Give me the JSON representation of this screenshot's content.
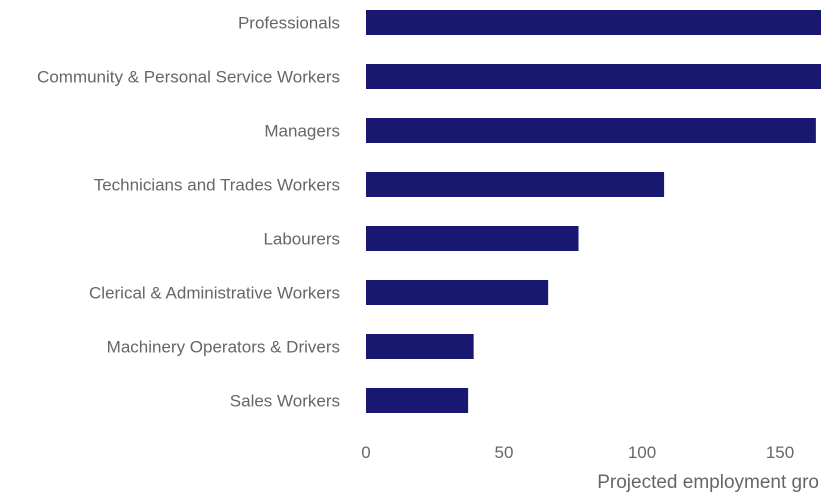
{
  "chart_data": {
    "type": "bar",
    "orientation": "horizontal",
    "categories": [
      "Professionals",
      "Community & Personal Service Workers",
      "Managers",
      "Technicians and Trades Workers",
      "Labourers",
      "Clerical & Administrative Workers",
      "Machinery Operators & Drivers",
      "Sales Workers"
    ],
    "values": [
      165,
      165,
      163,
      108,
      77,
      66,
      39,
      37
    ],
    "title": "",
    "xlabel": "Projected employment gro",
    "ylabel": "",
    "xlim": [
      0,
      165
    ],
    "xticks": [
      "0",
      "50",
      "100",
      "150"
    ],
    "grid": false,
    "legend": "none",
    "bar_color": "#181870"
  }
}
